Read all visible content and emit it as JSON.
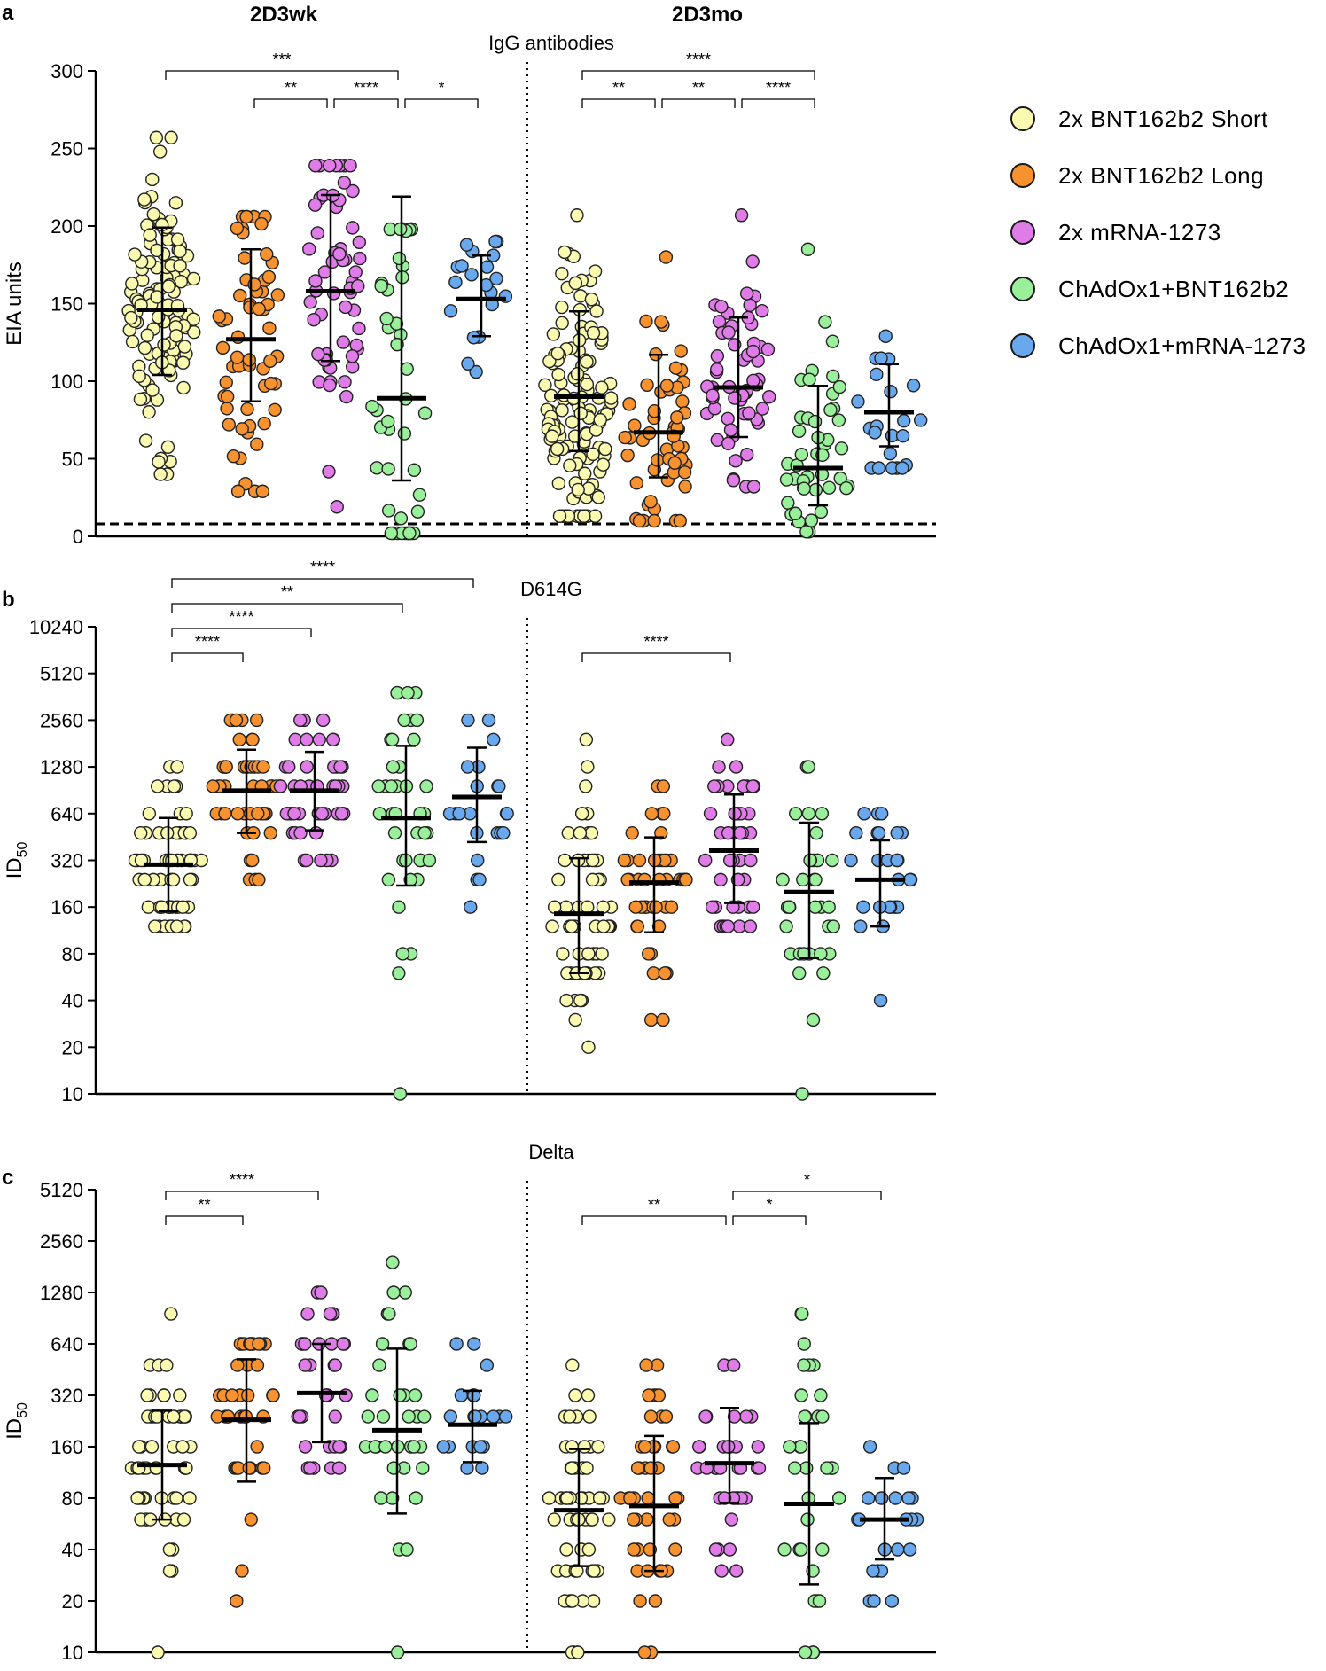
{
  "group_labels": [
    "2D3wk",
    "2D3mo"
  ],
  "legend": [
    {
      "label": "2x BNT162b2 Short",
      "color": "#fafab0",
      "icon": "circle-icon"
    },
    {
      "label": "2x BNT162b2 Long",
      "color": "#f7922e",
      "icon": "circle-icon"
    },
    {
      "label": "2x mRNA-1273",
      "color": "#e07ce8",
      "icon": "circle-icon"
    },
    {
      "label": "ChAdOx1+BNT162b2",
      "color": "#9af09a",
      "icon": "circle-icon"
    },
    {
      "label": "ChAdOx1+mRNA-1273",
      "color": "#6aa8ee",
      "icon": "circle-icon"
    }
  ],
  "chart_data": [
    {
      "panel": "a",
      "type": "scatter",
      "title": "IgG antibodies",
      "ylabel": "EIA units",
      "scale": "linear",
      "ylim": [
        0,
        300
      ],
      "yticks": [
        "0",
        "50",
        "100",
        "150",
        "200",
        "250",
        "300"
      ],
      "ytick_values": [
        0,
        50,
        100,
        150,
        200,
        250,
        300
      ],
      "threshold": 8,
      "groups": [
        {
          "name": "2D3wk",
          "series": [
            {
              "n": 120,
              "center": 146,
              "low": 104,
              "high": 199,
              "min": 40,
              "max": 257
            },
            {
              "n": 60,
              "center": 127,
              "low": 87,
              "high": 185,
              "min": 29,
              "max": 206
            },
            {
              "n": 60,
              "center": 158,
              "low": 113,
              "high": 220,
              "min": 19,
              "max": 239
            },
            {
              "n": 45,
              "center": 89,
              "low": 36,
              "high": 219,
              "min": 2,
              "max": 198
            },
            {
              "n": 20,
              "center": 153,
              "low": 129,
              "high": 181,
              "min": 106,
              "max": 190
            }
          ]
        },
        {
          "name": "2D3mo",
          "series": [
            {
              "n": 130,
              "center": 90,
              "low": 55,
              "high": 145,
              "min": 13,
              "max": 207
            },
            {
              "n": 55,
              "center": 67,
              "low": 38,
              "high": 117,
              "min": 10,
              "max": 180
            },
            {
              "n": 60,
              "center": 96,
              "low": 64,
              "high": 141,
              "min": 32,
              "max": 207
            },
            {
              "n": 45,
              "center": 44,
              "low": 20,
              "high": 97,
              "min": 3,
              "max": 185
            },
            {
              "n": 22,
              "center": 80,
              "low": 58,
              "high": 111,
              "min": 44,
              "max": 129
            }
          ]
        }
      ],
      "significance": [
        {
          "group": 0,
          "from": 0,
          "to": 3,
          "level": 1,
          "label": "***"
        },
        {
          "group": 0,
          "from": 1,
          "to": 2,
          "level": 0,
          "label": "**"
        },
        {
          "group": 0,
          "from": 2,
          "to": 3,
          "level": 0,
          "label": "****"
        },
        {
          "group": 0,
          "from": 3,
          "to": 4,
          "level": 0,
          "label": "*"
        },
        {
          "group": 1,
          "from": 0,
          "to": 3,
          "level": 1,
          "label": "****"
        },
        {
          "group": 1,
          "from": 0,
          "to": 1,
          "level": 0,
          "label": "**"
        },
        {
          "group": 1,
          "from": 1,
          "to": 2,
          "level": 0,
          "label": "**"
        },
        {
          "group": 1,
          "from": 2,
          "to": 3,
          "level": 0,
          "label": "****"
        }
      ]
    },
    {
      "panel": "b",
      "type": "scatter",
      "title": "D614G",
      "ylabel": "ID",
      "ylabel_sub": "50",
      "scale": "log2",
      "ylim": [
        10,
        10240
      ],
      "yticks": [
        "10",
        "20",
        "40",
        "80",
        "160",
        "320",
        "640",
        "1280",
        "2560",
        "5120",
        "10240"
      ],
      "ytick_values": [
        10,
        20,
        40,
        80,
        160,
        320,
        640,
        1280,
        2560,
        5120,
        10240
      ],
      "groups": [
        {
          "name": "2D3wk",
          "series": [
            {
              "n": 60,
              "center": 300,
              "low": 150,
              "high": 600,
              "min": 120,
              "max": 1280
            },
            {
              "n": 50,
              "center": 900,
              "low": 480,
              "high": 1650,
              "min": 240,
              "max": 2560
            },
            {
              "n": 45,
              "center": 900,
              "low": 500,
              "high": 1600,
              "min": 320,
              "max": 2560
            },
            {
              "n": 40,
              "center": 600,
              "low": 220,
              "high": 1750,
              "min": 10,
              "max": 3840
            },
            {
              "n": 22,
              "center": 820,
              "low": 420,
              "high": 1700,
              "min": 160,
              "max": 2560
            }
          ]
        },
        {
          "name": "2D3mo",
          "series": [
            {
              "n": 60,
              "center": 145,
              "low": 60,
              "high": 330,
              "min": 20,
              "max": 1920
            },
            {
              "n": 45,
              "center": 230,
              "low": 110,
              "high": 450,
              "min": 30,
              "max": 960
            },
            {
              "n": 45,
              "center": 370,
              "low": 170,
              "high": 850,
              "min": 120,
              "max": 1920
            },
            {
              "n": 35,
              "center": 200,
              "low": 75,
              "high": 560,
              "min": 10,
              "max": 1280
            },
            {
              "n": 25,
              "center": 240,
              "low": 120,
              "high": 430,
              "min": 40,
              "max": 640
            }
          ]
        }
      ],
      "significance": [
        {
          "group": 0,
          "from": 0,
          "to": 4,
          "level": 3,
          "label": "****"
        },
        {
          "group": 0,
          "from": 0,
          "to": 3,
          "level": 2,
          "label": "**"
        },
        {
          "group": 0,
          "from": 0,
          "to": 2,
          "level": 1,
          "label": "****"
        },
        {
          "group": 0,
          "from": 0,
          "to": 1,
          "level": 0,
          "label": "****"
        },
        {
          "group": 1,
          "from": 0,
          "to": 2,
          "level": 0,
          "label": "****"
        }
      ]
    },
    {
      "panel": "c",
      "type": "scatter",
      "title": "Delta",
      "ylabel": "ID",
      "ylabel_sub": "50",
      "scale": "log2",
      "ylim": [
        10,
        5120
      ],
      "yticks": [
        "10",
        "20",
        "40",
        "80",
        "160",
        "320",
        "640",
        "1280",
        "2560",
        "5120"
      ],
      "ytick_values": [
        10,
        20,
        40,
        80,
        160,
        320,
        640,
        1280,
        2560,
        5120
      ],
      "groups": [
        {
          "name": "2D3wk",
          "series": [
            {
              "n": 60,
              "center": 125,
              "low": 60,
              "high": 260,
              "min": 10,
              "max": 960
            },
            {
              "n": 40,
              "center": 230,
              "low": 100,
              "high": 520,
              "min": 20,
              "max": 640
            },
            {
              "n": 35,
              "center": 330,
              "low": 170,
              "high": 640,
              "min": 120,
              "max": 1280
            },
            {
              "n": 35,
              "center": 200,
              "low": 65,
              "high": 600,
              "min": 10,
              "max": 1920
            },
            {
              "n": 20,
              "center": 215,
              "low": 130,
              "high": 340,
              "min": 120,
              "max": 640
            }
          ]
        },
        {
          "name": "2D3mo",
          "series": [
            {
              "n": 60,
              "center": 68,
              "low": 32,
              "high": 155,
              "min": 10,
              "max": 480
            },
            {
              "n": 45,
              "center": 72,
              "low": 30,
              "high": 185,
              "min": 10,
              "max": 480
            },
            {
              "n": 40,
              "center": 128,
              "low": 75,
              "high": 270,
              "min": 30,
              "max": 480
            },
            {
              "n": 35,
              "center": 74,
              "low": 25,
              "high": 220,
              "min": 10,
              "max": 960
            },
            {
              "n": 22,
              "center": 60,
              "low": 35,
              "high": 105,
              "min": 20,
              "max": 160
            }
          ]
        }
      ],
      "significance": [
        {
          "group": 0,
          "from": 0,
          "to": 2,
          "level": 1,
          "label": "****"
        },
        {
          "group": 0,
          "from": 0,
          "to": 1,
          "level": 0,
          "label": "**"
        },
        {
          "group": 1,
          "from": 4,
          "to": 2,
          "level": 1,
          "label": "*"
        },
        {
          "group": 1,
          "from": 0,
          "to": 2,
          "level": 0,
          "label": "**"
        },
        {
          "group": 1,
          "from": 2,
          "to": 3,
          "level": 0,
          "label": "*"
        }
      ]
    }
  ]
}
